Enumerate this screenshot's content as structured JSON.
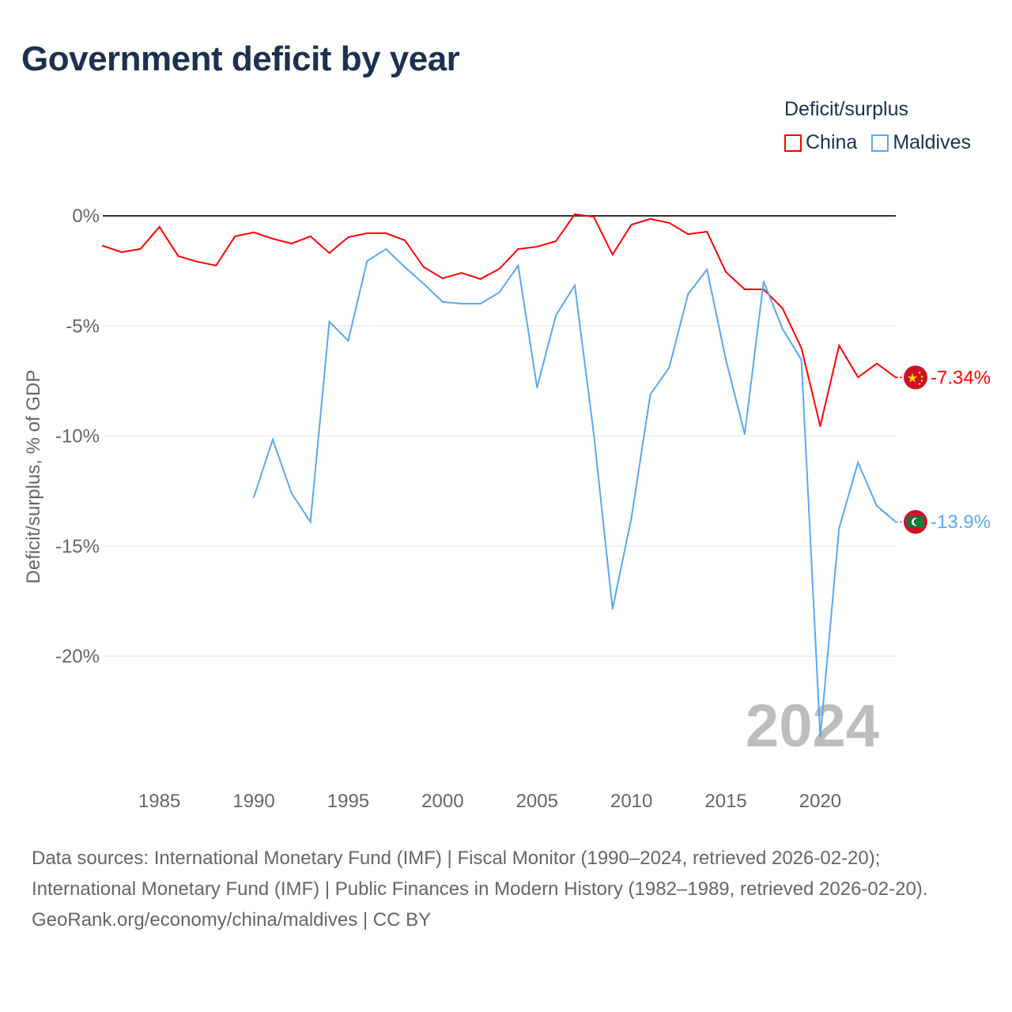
{
  "title": "Government deficit by year",
  "legend": {
    "title": "Deficit/surplus",
    "items": [
      {
        "label": "China",
        "color": "#ff0000"
      },
      {
        "label": "Maldives",
        "color": "#5aa8f0"
      }
    ]
  },
  "year_watermark": "2024",
  "footer": {
    "sources": "Data sources: International Monetary Fund (IMF) | Fiscal Monitor (1990–2024, retrieved 2026-02-20); International Monetary Fund (IMF) | Public Finances in Modern History (1982–1989, retrieved 2026-02-20).",
    "credit": "GeoRank.org/economy/china/maldives | CC BY"
  },
  "chart_data": {
    "type": "line",
    "title": "Government deficit by year",
    "xlabel": "",
    "ylabel": "Deficit/surplus, % of GDP",
    "xlim": [
      1982,
      2024
    ],
    "ylim": [
      -25.7,
      0.5
    ],
    "x_ticks": [
      1985,
      1990,
      1995,
      2000,
      2005,
      2010,
      2015,
      2020
    ],
    "y_ticks": [
      0,
      -5,
      -10,
      -15,
      -20
    ],
    "y_tick_labels": [
      "0%",
      "-5%",
      "-10%",
      "-15%",
      "-20%"
    ],
    "grid": true,
    "legend_position": "top-right",
    "series": [
      {
        "name": "China",
        "color": "#ff0000",
        "end_label": "-7.34%",
        "flag": "china",
        "x": [
          1982,
          1983,
          1984,
          1985,
          1986,
          1987,
          1988,
          1989,
          1990,
          1991,
          1992,
          1993,
          1994,
          1995,
          1996,
          1997,
          1998,
          1999,
          2000,
          2001,
          2002,
          2003,
          2004,
          2005,
          2006,
          2007,
          2008,
          2009,
          2010,
          2011,
          2012,
          2013,
          2014,
          2015,
          2016,
          2017,
          2018,
          2019,
          2020,
          2021,
          2022,
          2023,
          2024
        ],
        "values": [
          -1.36,
          -1.65,
          -1.5,
          -0.5,
          -1.83,
          -2.08,
          -2.26,
          -0.93,
          -0.75,
          -1.04,
          -1.26,
          -0.93,
          -1.69,
          -0.97,
          -0.79,
          -0.79,
          -1.11,
          -2.33,
          -2.84,
          -2.59,
          -2.87,
          -2.41,
          -1.51,
          -1.4,
          -1.15,
          0.07,
          -0.04,
          -1.76,
          -0.4,
          -0.14,
          -0.32,
          -0.83,
          -0.72,
          -2.55,
          -3.34,
          -3.34,
          -4.2,
          -6.0,
          -9.55,
          -5.89,
          -7.33,
          -6.71,
          -7.34
        ]
      },
      {
        "name": "Maldives",
        "color": "#5aa8f0",
        "end_label": "-13.9%",
        "flag": "maldives",
        "x": [
          1990,
          1991,
          1992,
          1993,
          1994,
          1995,
          1996,
          1997,
          1998,
          1999,
          2000,
          2001,
          2002,
          2003,
          2004,
          2005,
          2006,
          2007,
          2008,
          2009,
          2010,
          2011,
          2012,
          2013,
          2014,
          2015,
          2016,
          2017,
          2018,
          2019,
          2020,
          2021,
          2022,
          2023,
          2024
        ],
        "values": [
          -12.78,
          -10.16,
          -12.6,
          -13.9,
          -4.81,
          -5.67,
          -2.05,
          -1.51,
          -2.33,
          -3.09,
          -3.91,
          -3.99,
          -3.99,
          -3.48,
          -2.26,
          -7.79,
          -4.52,
          -3.16,
          -9.87,
          -17.85,
          -13.72,
          -8.11,
          -6.89,
          -3.55,
          -2.44,
          -6.53,
          -9.91,
          -2.98,
          -5.13,
          -6.53,
          -23.66,
          -14.18,
          -11.2,
          -13.18,
          -13.9
        ]
      }
    ]
  }
}
